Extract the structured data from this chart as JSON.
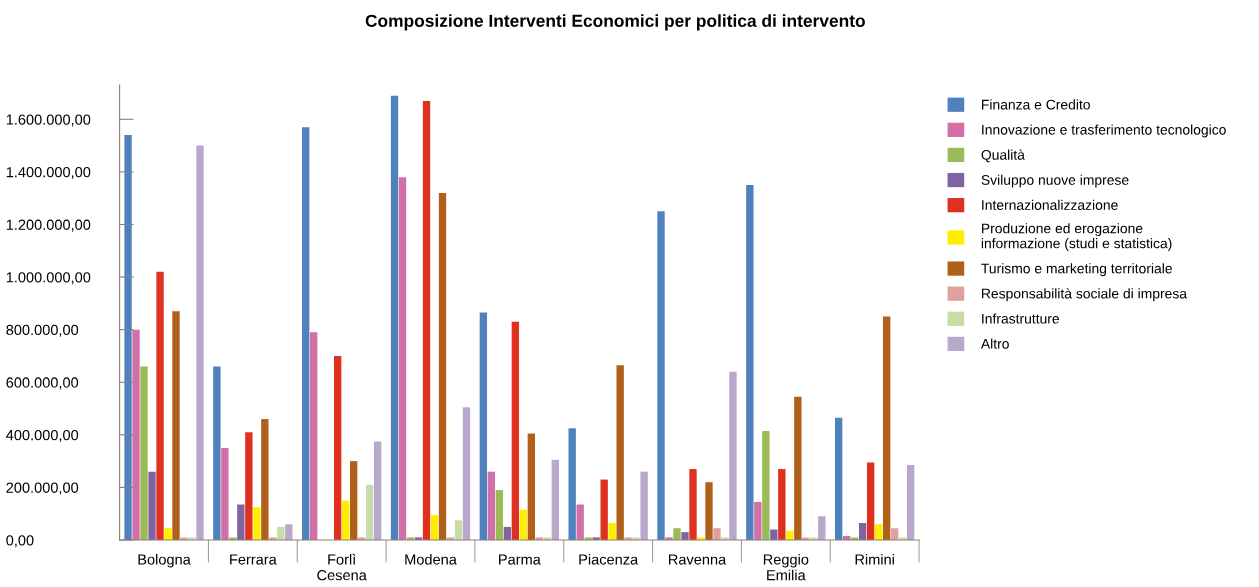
{
  "chart_data": {
    "type": "bar",
    "title": "Composizione Interventi Economici per politica di intervento",
    "categories": [
      "Bologna",
      "Ferrara",
      "Forlì\nCesena",
      "Modena",
      "Parma",
      "Piacenza",
      "Ravenna",
      "Reggio\nEmilia",
      "Rimini"
    ],
    "series": [
      {
        "name": "Finanza e Credito",
        "color": "#4f81bd",
        "values": [
          1540000,
          660000,
          1570000,
          1690000,
          865000,
          425000,
          1250000,
          1350000,
          465000
        ]
      },
      {
        "name": "Innovazione e trasferimento tecnologico",
        "color": "#d06fa8",
        "values": [
          800000,
          350000,
          790000,
          1380000,
          260000,
          135000,
          10000,
          145000,
          15000
        ]
      },
      {
        "name": "Qualità",
        "color": "#9bbb59",
        "values": [
          660000,
          10000,
          0,
          10000,
          190000,
          10000,
          45000,
          415000,
          10000
        ]
      },
      {
        "name": "Sviluppo nuove imprese",
        "color": "#8064a2",
        "values": [
          260000,
          135000,
          0,
          10000,
          50000,
          10000,
          30000,
          40000,
          65000
        ]
      },
      {
        "name": "Internazionalizzazione",
        "color": "#e03020",
        "values": [
          1020000,
          410000,
          700000,
          1670000,
          830000,
          230000,
          270000,
          270000,
          295000
        ]
      },
      {
        "name": "Produzione ed erogazione\ninformazione (studi e statistica)",
        "color": "#ffee00",
        "values": [
          45000,
          125000,
          150000,
          95000,
          115000,
          65000,
          10000,
          35000,
          60000
        ]
      },
      {
        "name": "Turismo e marketing territoriale",
        "color": "#b0601a",
        "values": [
          870000,
          460000,
          300000,
          1320000,
          405000,
          665000,
          220000,
          545000,
          850000
        ]
      },
      {
        "name": "Responsabilità sociale di impresa",
        "color": "#e0a0a0",
        "values": [
          10000,
          10000,
          10000,
          10000,
          10000,
          10000,
          45000,
          10000,
          45000
        ]
      },
      {
        "name": "Infrastrutture",
        "color": "#c8dca8",
        "values": [
          10000,
          50000,
          210000,
          75000,
          10000,
          10000,
          10000,
          10000,
          10000
        ]
      },
      {
        "name": "Altro",
        "color": "#b8a8cc",
        "values": [
          1500000,
          60000,
          375000,
          505000,
          305000,
          260000,
          640000,
          90000,
          285000
        ]
      }
    ],
    "ylim": [
      0,
      1730000
    ],
    "yticks": [
      {
        "value": 0,
        "label": "0,00"
      },
      {
        "value": 200000,
        "label": "200.000,00"
      },
      {
        "value": 400000,
        "label": "400.000,00"
      },
      {
        "value": 600000,
        "label": "600.000,00"
      },
      {
        "value": 800000,
        "label": "800.000,00"
      },
      {
        "value": 1000000,
        "label": "1.000.000,00"
      },
      {
        "value": 1200000,
        "label": "1.200.000,00"
      },
      {
        "value": 1400000,
        "label": "1.400.000,00"
      },
      {
        "value": 1600000,
        "label": "1.600.000,00"
      }
    ],
    "grid": false,
    "legend": "right"
  }
}
